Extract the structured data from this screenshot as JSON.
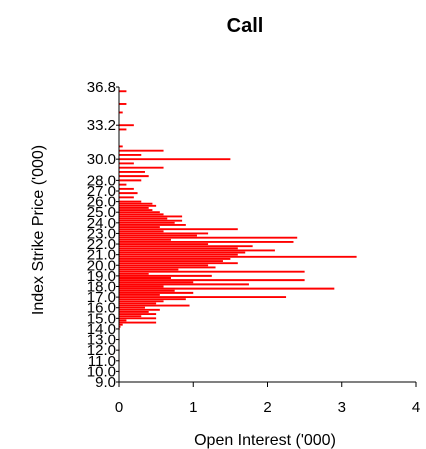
{
  "chart_data": {
    "type": "bar",
    "orientation": "horizontal",
    "title": "Call",
    "xlabel": "Open Interest ('000)",
    "ylabel": "Index Strike Price ('000)",
    "xlim": [
      0,
      4
    ],
    "ylim": [
      9.0,
      36.8
    ],
    "x_ticks": [
      "0",
      "1",
      "2",
      "3",
      "4"
    ],
    "y_ticks": [
      "9.0",
      "10.0",
      "11.0",
      "12.0",
      "13.0",
      "14.0",
      "15.0",
      "16.0",
      "17.0",
      "18.0",
      "19.0",
      "20.0",
      "21.0",
      "22.0",
      "23.0",
      "24.0",
      "25.0",
      "26.0",
      "27.0",
      "28.0",
      "30.0",
      "33.2",
      "36.8"
    ],
    "grid": false,
    "legend": "none",
    "colors": {
      "bars": "#ff0000",
      "axis": "#000000"
    },
    "series": [
      {
        "strikes": [
          36.4,
          35.2,
          34.4,
          33.2,
          32.8,
          31.2,
          30.8,
          30.4,
          30.0,
          29.6,
          29.2,
          28.8,
          28.4,
          28.0,
          27.6,
          27.2,
          26.8,
          26.4,
          26.0,
          25.8,
          25.6,
          25.4,
          25.2,
          25.0,
          24.8,
          24.6,
          24.4,
          24.2,
          24.0,
          23.8,
          23.6,
          23.4,
          23.2,
          23.0,
          22.8,
          22.6,
          22.4,
          22.2,
          22.0,
          21.8,
          21.6,
          21.4,
          21.2,
          21.0,
          20.8,
          20.6,
          20.4,
          20.2,
          20.0,
          19.8,
          19.6,
          19.4,
          19.2,
          19.0,
          18.8,
          18.6,
          18.4,
          18.2,
          18.0,
          17.8,
          17.6,
          17.4,
          17.2,
          17.0,
          16.8,
          16.6,
          16.4,
          16.2,
          16.0,
          15.8,
          15.6,
          15.4,
          15.2,
          15.0,
          14.8,
          14.6,
          14.4,
          14.2,
          14.0,
          13.0,
          12.0,
          11.0,
          10.0
        ],
        "values": [
          0.1,
          0.1,
          0.05,
          0.2,
          0.1,
          0.05,
          0.6,
          0.3,
          1.5,
          0.2,
          0.6,
          0.35,
          0.4,
          0.3,
          0.1,
          0.2,
          0.25,
          0.2,
          0.3,
          0.45,
          0.5,
          0.4,
          0.45,
          0.55,
          0.6,
          0.85,
          0.65,
          0.85,
          0.75,
          0.9,
          0.55,
          1.6,
          0.6,
          1.2,
          1.05,
          2.4,
          0.7,
          2.35,
          1.2,
          1.8,
          1.6,
          2.1,
          1.7,
          1.6,
          3.2,
          1.5,
          1.4,
          1.6,
          1.2,
          1.3,
          0.8,
          2.5,
          0.4,
          1.25,
          0.7,
          2.5,
          1.0,
          1.75,
          0.6,
          2.9,
          0.75,
          1.0,
          0.55,
          2.25,
          0.9,
          0.6,
          0.5,
          0.95,
          0.35,
          0.55,
          0.4,
          0.5,
          0.3,
          0.5,
          0.1,
          0.5,
          0.05,
          0.02,
          0.01,
          0.005,
          0.005,
          0.005,
          0.005
        ]
      }
    ]
  }
}
